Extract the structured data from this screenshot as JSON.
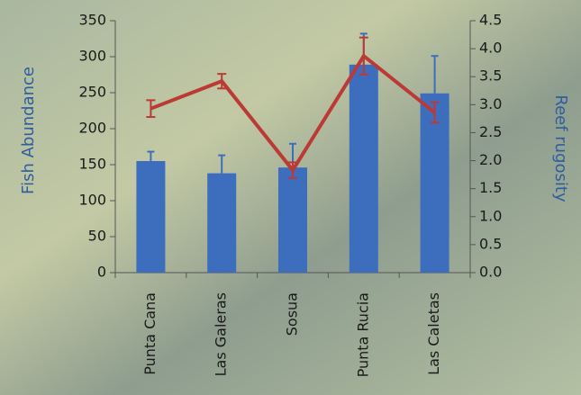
{
  "chart_data": {
    "type": "bar-line",
    "categories": [
      "Punta Cana",
      "Las Galeras",
      "Sosua",
      "Punta Rucia",
      "Las Caletas"
    ],
    "y_label": "Fish Abundance",
    "y2_label": "Reef rugosity",
    "ylim": [
      0,
      350
    ],
    "yticks": [
      0,
      50,
      100,
      150,
      200,
      250,
      300,
      350
    ],
    "y2lim": [
      0,
      4.5
    ],
    "y2ticks": [
      {
        "value": 0,
        "label": "0.0"
      },
      {
        "value": 0.5,
        "label": "0.5"
      },
      {
        "value": 1,
        "label": "1.0"
      },
      {
        "value": 1.5,
        "label": "1.5"
      },
      {
        "value": 2,
        "label": "2.0"
      },
      {
        "value": 2.5,
        "label": "2.5"
      },
      {
        "value": 3,
        "label": "3.0"
      },
      {
        "value": 3.5,
        "label": "3.5"
      },
      {
        "value": 4,
        "label": "4.0"
      },
      {
        "value": 4.5,
        "label": "4.5"
      }
    ],
    "series": [
      {
        "type": "bar",
        "color": "#3d6dbd",
        "values": [
          155,
          138,
          146,
          289,
          249
        ],
        "errors": [
          13,
          25,
          33,
          43,
          52
        ]
      },
      {
        "type": "line",
        "axis": "y2",
        "color": "#bb3a35",
        "values": [
          2.93,
          3.42,
          1.83,
          3.87,
          2.86
        ],
        "errors": [
          0.15,
          0.13,
          0.14,
          0.33,
          0.18
        ]
      }
    ]
  }
}
